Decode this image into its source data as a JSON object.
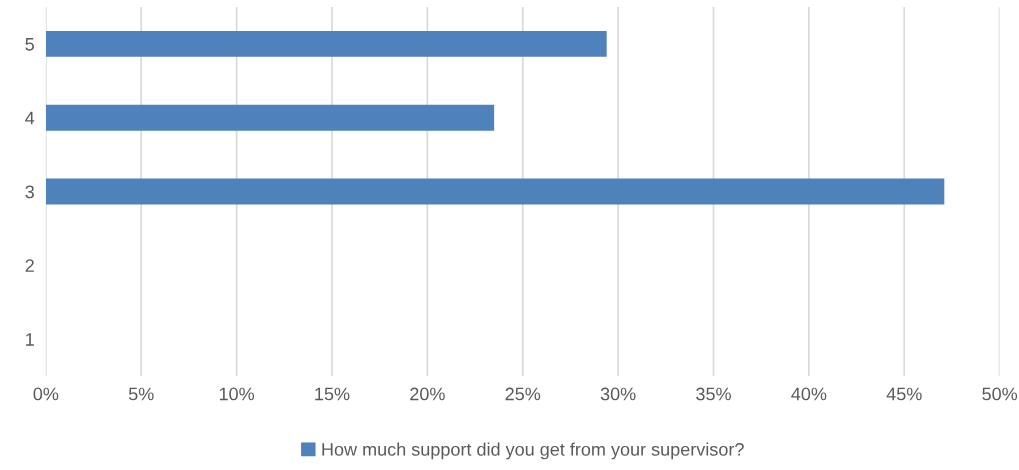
{
  "chart_data": {
    "type": "bar",
    "orientation": "horizontal",
    "categories": [
      "5",
      "4",
      "3",
      "2",
      "1"
    ],
    "series": [
      {
        "name": "How much support did you get from your supervisor?",
        "color": "#4f81bd",
        "values": [
          29.4,
          23.5,
          47.1,
          0,
          0
        ]
      }
    ],
    "xlim": [
      0,
      50
    ],
    "xticks": [
      {
        "value": 0,
        "label": "0%"
      },
      {
        "value": 5,
        "label": "5%"
      },
      {
        "value": 10,
        "label": "10%"
      },
      {
        "value": 15,
        "label": "15%"
      },
      {
        "value": 20,
        "label": "20%"
      },
      {
        "value": 25,
        "label": "25%"
      },
      {
        "value": 30,
        "label": "30%"
      },
      {
        "value": 35,
        "label": "35%"
      },
      {
        "value": 40,
        "label": "40%"
      },
      {
        "value": 45,
        "label": "45%"
      },
      {
        "value": 50,
        "label": "50%"
      }
    ],
    "grid": "x",
    "legend": "bottom"
  }
}
